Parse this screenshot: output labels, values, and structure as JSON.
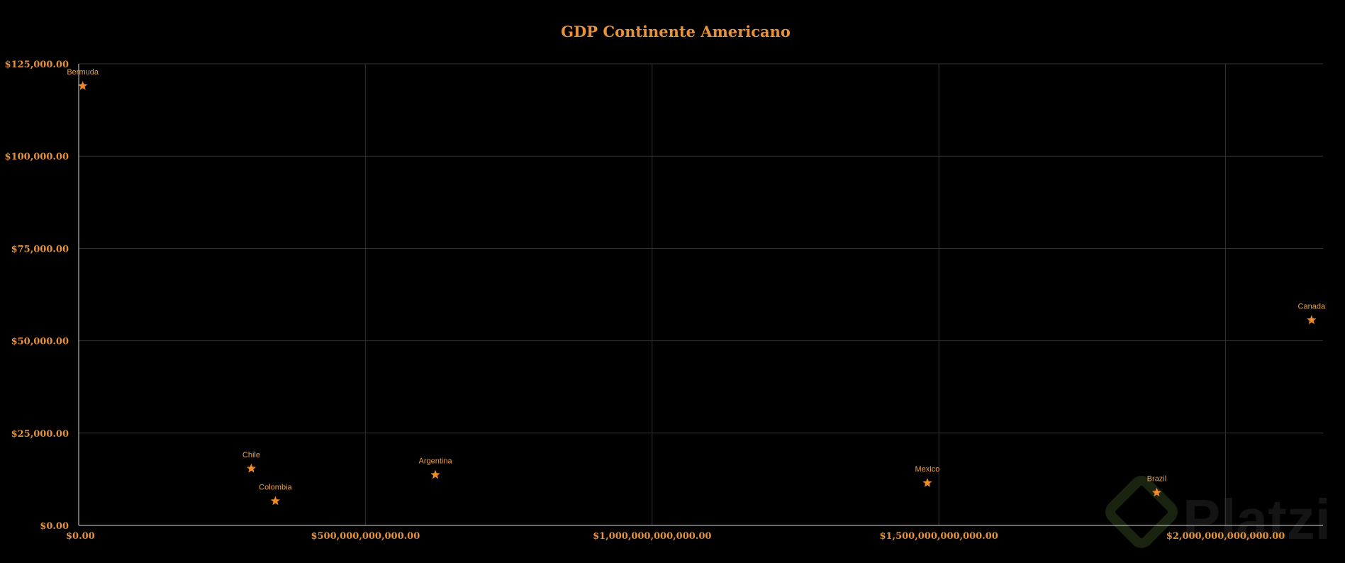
{
  "colors": {
    "background": "#000000",
    "accent": "#e6923a",
    "marker": "#f08a24",
    "grid": "#333333",
    "axis": "#d9d9d9"
  },
  "watermark": {
    "text": "Platzi",
    "icon": "platzi-logo-icon"
  },
  "chart_data": {
    "type": "scatter",
    "title": "GDP Continente Americano",
    "xlabel": "",
    "ylabel": "",
    "xlim": [
      0,
      2170000000000
    ],
    "ylim": [
      0,
      125000
    ],
    "grid": true,
    "legend": "none",
    "marker": "star-icon",
    "x_ticks": [
      {
        "value": 0,
        "label": "$0.00"
      },
      {
        "value": 500000000000,
        "label": "$500,000,000,000.00"
      },
      {
        "value": 1000000000000,
        "label": "$1,000,000,000,000.00"
      },
      {
        "value": 1500000000000,
        "label": "$1,500,000,000,000.00"
      },
      {
        "value": 2000000000000,
        "label": "$2,000,000,000,000.00"
      }
    ],
    "y_ticks": [
      {
        "value": 0,
        "label": "$0.00"
      },
      {
        "value": 25000,
        "label": "$25,000.00"
      },
      {
        "value": 50000,
        "label": "$50,000.00"
      },
      {
        "value": 75000,
        "label": "$75,000.00"
      },
      {
        "value": 100000,
        "label": "$100,000.00"
      },
      {
        "value": 125000,
        "label": "$125,000.00"
      }
    ],
    "points": [
      {
        "name": "Bermuda",
        "x": 7000000000,
        "y": 119000
      },
      {
        "name": "Chile",
        "x": 301000000000,
        "y": 15400
      },
      {
        "name": "Colombia",
        "x": 343000000000,
        "y": 6600
      },
      {
        "name": "Argentina",
        "x": 622000000000,
        "y": 13700
      },
      {
        "name": "Mexico",
        "x": 1480000000000,
        "y": 11500
      },
      {
        "name": "Brazil",
        "x": 1880000000000,
        "y": 8900
      },
      {
        "name": "Canada",
        "x": 2150000000000,
        "y": 55600
      }
    ]
  }
}
